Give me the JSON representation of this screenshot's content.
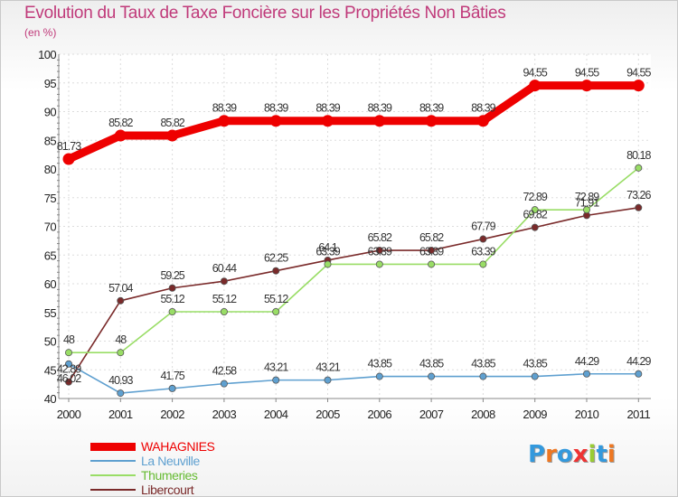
{
  "chart_data": {
    "type": "line",
    "title": "Evolution du Taux de Taxe Foncière sur les Propriétés Non Bâties",
    "ylabel": "(en %)",
    "xlabel": "",
    "categories": [
      "2000",
      "2001",
      "2002",
      "2003",
      "2004",
      "2005",
      "2006",
      "2007",
      "2008",
      "2009",
      "2010",
      "2011"
    ],
    "ylim": [
      40,
      100
    ],
    "yticks": [
      "40",
      "45",
      "50",
      "55",
      "60",
      "65",
      "70",
      "75",
      "80",
      "85",
      "90",
      "95",
      "100"
    ],
    "grid": true,
    "legend_position": "bottom-left",
    "series": [
      {
        "name": "WAHAGNIES",
        "color": "#ee0000",
        "values": [
          81.73,
          85.82,
          85.82,
          88.39,
          88.39,
          88.39,
          88.39,
          88.39,
          88.39,
          94.55,
          94.55,
          94.55
        ],
        "labels": [
          "81.73",
          "85.82",
          "85.82",
          "88.39",
          "88.39",
          "88.39",
          "88.39",
          "88.39",
          "88.39",
          "94.55",
          "94.55",
          "94.55"
        ]
      },
      {
        "name": "La Neuville",
        "color": "#5fa0d0",
        "values": [
          46.02,
          40.93,
          41.75,
          42.58,
          43.21,
          43.21,
          43.85,
          43.85,
          43.85,
          43.85,
          44.29,
          44.29
        ],
        "labels": [
          "46.02",
          "40.93",
          "41.75",
          "42.58",
          "43.21",
          "43.21",
          "43.85",
          "43.85",
          "43.85",
          "43.85",
          "44.29",
          "44.29"
        ]
      },
      {
        "name": "Thumeries",
        "color": "#99dd66",
        "values": [
          48,
          48,
          55.12,
          55.12,
          55.12,
          63.39,
          63.39,
          63.39,
          63.39,
          72.89,
          72.89,
          80.18
        ],
        "labels": [
          "48",
          "48",
          "55.12",
          "55.12",
          "55.12",
          "63.39",
          "63.39",
          "63.39",
          "63.39",
          "72.89",
          "72.89",
          "80.18"
        ]
      },
      {
        "name": "Libercourt",
        "color": "#7a2a2a",
        "values": [
          42.89,
          57.04,
          59.25,
          60.44,
          62.25,
          64.1,
          65.82,
          65.82,
          67.79,
          69.82,
          71.91,
          73.26
        ],
        "labels": [
          "42.89",
          "57.04",
          "59.25",
          "60.44",
          "62.25",
          "64.1",
          "65.82",
          "65.82",
          "67.79",
          "69.82",
          "71.91",
          "73.26"
        ]
      }
    ]
  },
  "logo": {
    "text": "Proxiti",
    "letter_colors": [
      "#3399dd",
      "#ee7722",
      "#3399dd",
      "#ee3333",
      "#99cc33",
      "#3399dd",
      "#ee7722"
    ]
  }
}
